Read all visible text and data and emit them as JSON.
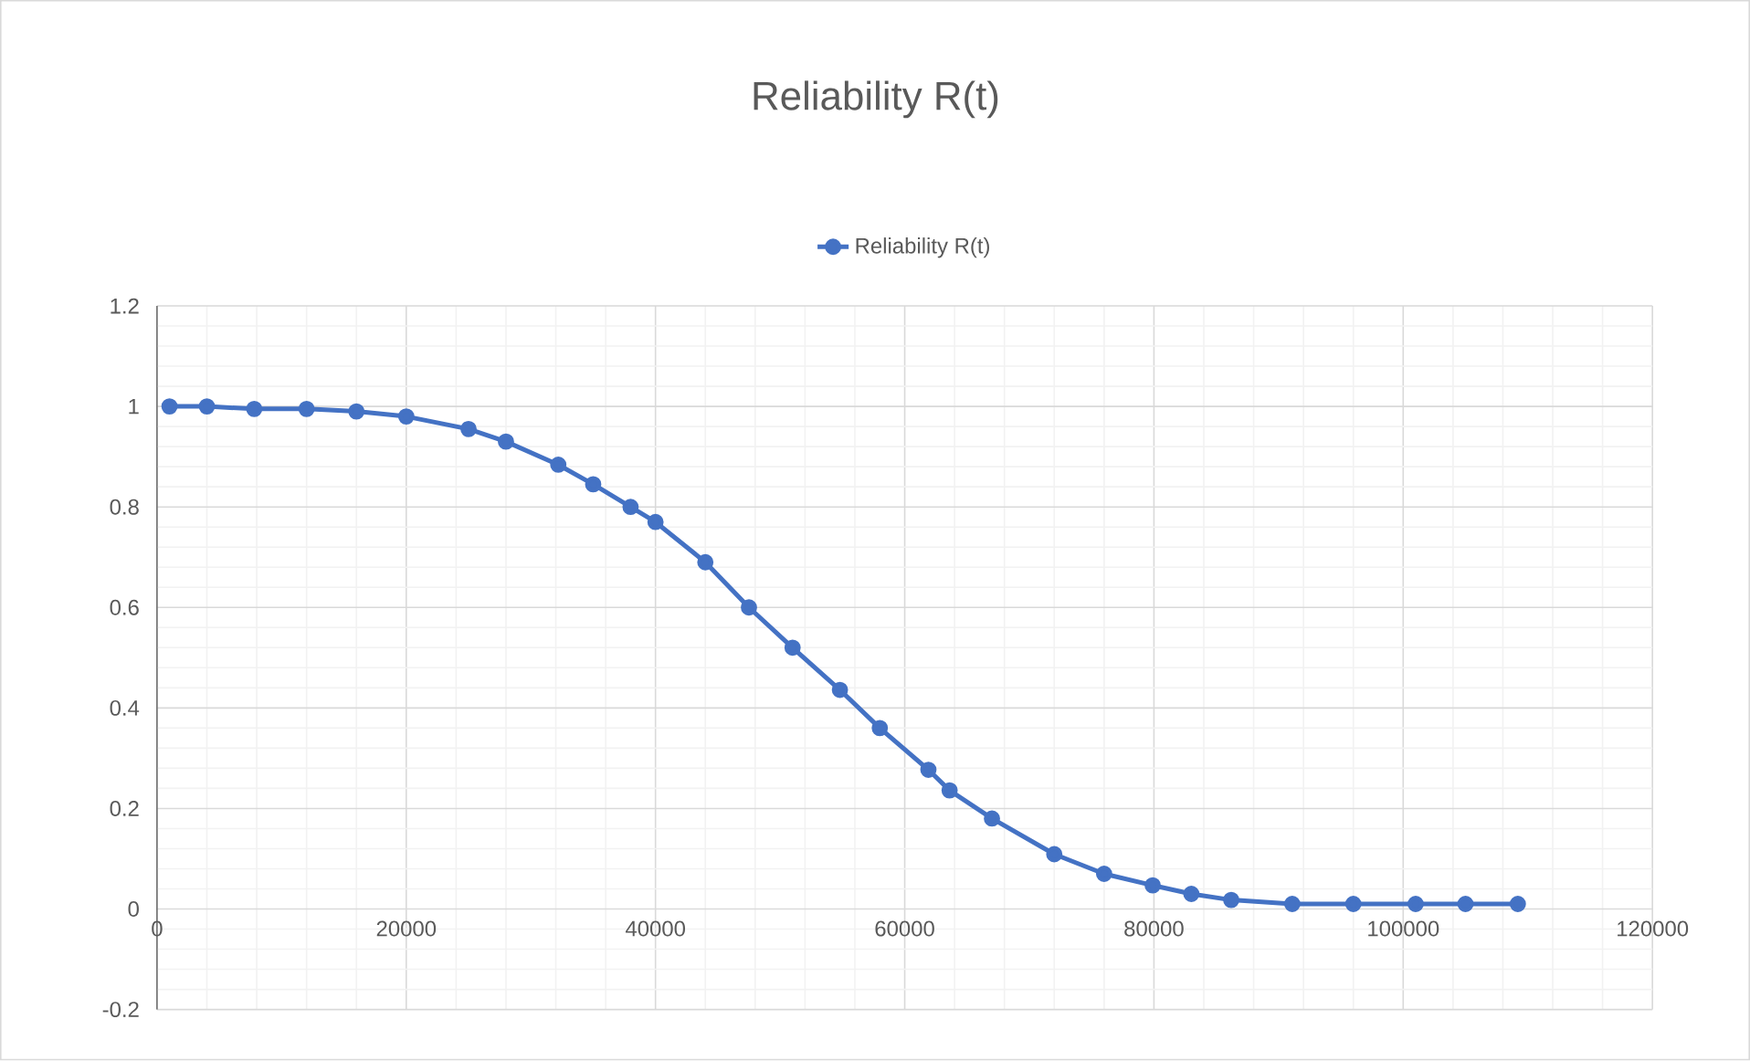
{
  "chart_data": {
    "type": "line",
    "title": "Reliability R(t)",
    "series": [
      {
        "name": "Reliability R(t)",
        "color": "#4472c4",
        "x": [
          1000,
          4000,
          7800,
          12000,
          16000,
          20000,
          25000,
          28000,
          32200,
          35000,
          38000,
          40000,
          44000,
          47500,
          51000,
          54800,
          58000,
          61900,
          63600,
          67000,
          72000,
          76000,
          79900,
          83000,
          86200,
          91100,
          96000,
          101000,
          105000,
          109200
        ],
        "values": [
          1.0,
          1.0,
          0.995,
          0.995,
          0.99,
          0.98,
          0.955,
          0.93,
          0.884,
          0.845,
          0.8,
          0.77,
          0.69,
          0.6,
          0.52,
          0.436,
          0.36,
          0.277,
          0.236,
          0.18,
          0.109,
          0.07,
          0.047,
          0.03,
          0.018,
          0.01,
          0.01,
          0.01,
          0.01,
          0.01
        ]
      }
    ],
    "xlim": [
      0,
      120000
    ],
    "ylim": [
      -0.2,
      1.2
    ],
    "xticks": [
      0,
      20000,
      40000,
      60000,
      80000,
      100000,
      120000
    ],
    "yticks": [
      -0.2,
      0,
      0.2,
      0.4,
      0.6,
      0.8,
      1,
      1.2
    ],
    "grid": true,
    "legend": "top",
    "marker": "circle",
    "line_style": "solid"
  }
}
